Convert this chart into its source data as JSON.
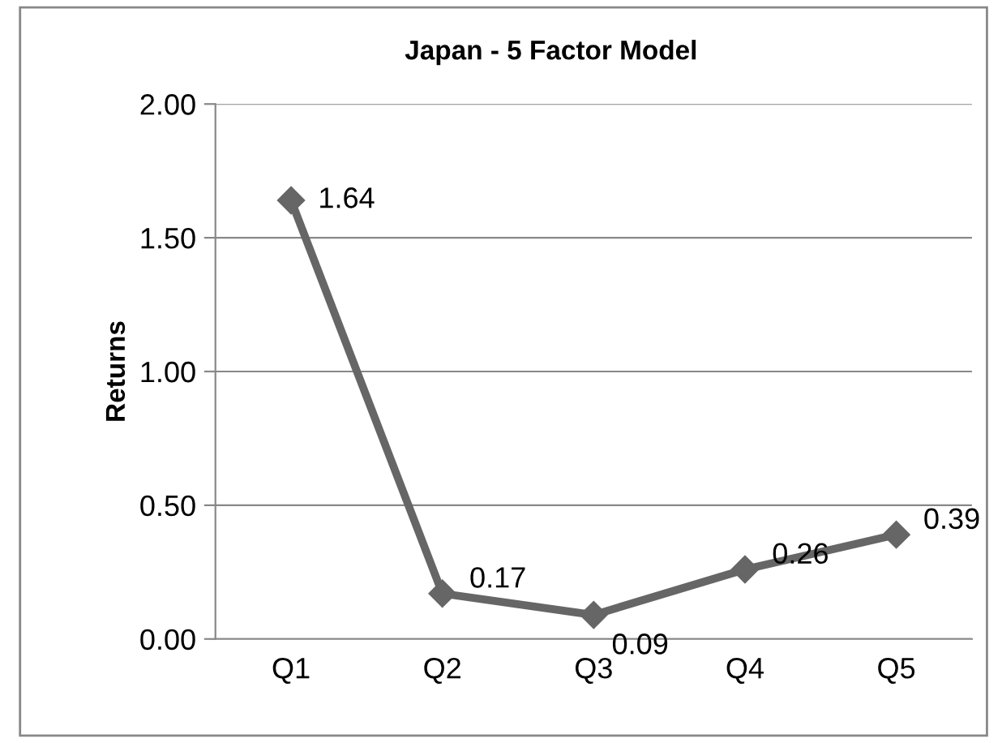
{
  "chart_data": {
    "type": "line",
    "title": "Japan - 5 Factor Model",
    "ylabel": "Returns",
    "categories": [
      "Q1",
      "Q2",
      "Q3",
      "Q4",
      "Q5"
    ],
    "series": [
      {
        "color": "#666666",
        "values": [
          1.64,
          0.17,
          0.09,
          0.26,
          0.39
        ]
      }
    ],
    "ylim": [
      0,
      2
    ],
    "yticks": [
      {
        "value": 0,
        "label": "0.00"
      },
      {
        "value": 0.5,
        "label": "0.50"
      },
      {
        "value": 1,
        "label": "1.00"
      },
      {
        "value": 1.5,
        "label": "1.50"
      },
      {
        "value": 2,
        "label": "2.00"
      }
    ],
    "grid": "y",
    "marker": "diamond",
    "line_style": "solid",
    "data_labels": true
  }
}
